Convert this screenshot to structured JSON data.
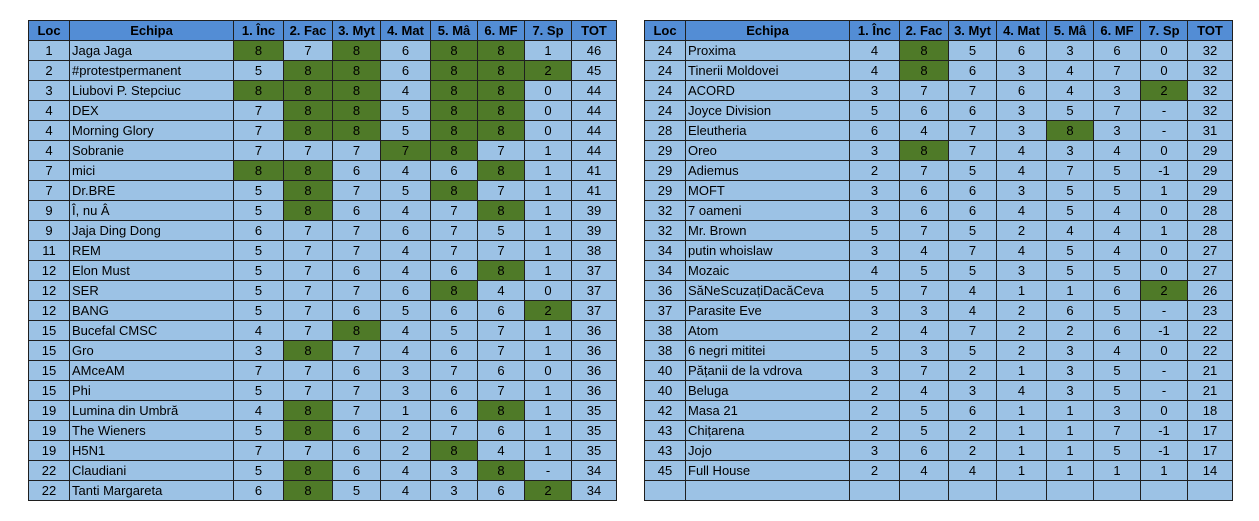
{
  "headers": [
    "Loc",
    "Echipa",
    "1. Înc",
    "2. Fac",
    "3. Myt",
    "4. Mat",
    "5. Mâ",
    "6. MF",
    "7. Sp",
    "TOT"
  ],
  "colors": {
    "header": "#538dd5",
    "cell": "#9cc2e5",
    "highlight": "#4f7a28"
  },
  "left_rows": [
    {
      "loc": "1",
      "team": "Jaga Jaga",
      "s": [
        "8",
        "7",
        "8",
        "6",
        "8",
        "8",
        "1"
      ],
      "hi": [
        0,
        2,
        4,
        5
      ],
      "tot": "46"
    },
    {
      "loc": "2",
      "team": "#protestpermanent",
      "s": [
        "5",
        "8",
        "8",
        "6",
        "8",
        "8",
        "2"
      ],
      "hi": [
        1,
        2,
        4,
        5,
        6
      ],
      "tot": "45"
    },
    {
      "loc": "3",
      "team": "Liubovi P. Stepciuc",
      "s": [
        "8",
        "8",
        "8",
        "4",
        "8",
        "8",
        "0"
      ],
      "hi": [
        0,
        1,
        2,
        4,
        5
      ],
      "tot": "44"
    },
    {
      "loc": "4",
      "team": "DEX",
      "s": [
        "7",
        "8",
        "8",
        "5",
        "8",
        "8",
        "0"
      ],
      "hi": [
        1,
        2,
        4,
        5
      ],
      "tot": "44"
    },
    {
      "loc": "4",
      "team": "Morning Glory",
      "s": [
        "7",
        "8",
        "8",
        "5",
        "8",
        "8",
        "0"
      ],
      "hi": [
        1,
        2,
        4,
        5
      ],
      "tot": "44"
    },
    {
      "loc": "4",
      "team": "Sobranie",
      "s": [
        "7",
        "7",
        "7",
        "7",
        "8",
        "7",
        "1"
      ],
      "hi": [
        3,
        4
      ],
      "tot": "44"
    },
    {
      "loc": "7",
      "team": "mici",
      "s": [
        "8",
        "8",
        "6",
        "4",
        "6",
        "8",
        "1"
      ],
      "hi": [
        0,
        1,
        5
      ],
      "tot": "41"
    },
    {
      "loc": "7",
      "team": "Dr.BRE",
      "s": [
        "5",
        "8",
        "7",
        "5",
        "8",
        "7",
        "1"
      ],
      "hi": [
        1,
        4
      ],
      "tot": "41"
    },
    {
      "loc": "9",
      "team": "Î, nu Â",
      "s": [
        "5",
        "8",
        "6",
        "4",
        "7",
        "8",
        "1"
      ],
      "hi": [
        1,
        5
      ],
      "tot": "39"
    },
    {
      "loc": "9",
      "team": "Jaja Ding Dong",
      "s": [
        "6",
        "7",
        "7",
        "6",
        "7",
        "5",
        "1"
      ],
      "hi": [],
      "tot": "39"
    },
    {
      "loc": "11",
      "team": "REM",
      "s": [
        "5",
        "7",
        "7",
        "4",
        "7",
        "7",
        "1"
      ],
      "hi": [],
      "tot": "38"
    },
    {
      "loc": "12",
      "team": "Elon Must",
      "s": [
        "5",
        "7",
        "6",
        "4",
        "6",
        "8",
        "1"
      ],
      "hi": [
        5
      ],
      "tot": "37"
    },
    {
      "loc": "12",
      "team": "SER",
      "s": [
        "5",
        "7",
        "7",
        "6",
        "8",
        "4",
        "0"
      ],
      "hi": [
        4
      ],
      "tot": "37"
    },
    {
      "loc": "12",
      "team": "BANG",
      "s": [
        "5",
        "7",
        "6",
        "5",
        "6",
        "6",
        "2"
      ],
      "hi": [
        6
      ],
      "tot": "37"
    },
    {
      "loc": "15",
      "team": "Bucefal CMSC",
      "s": [
        "4",
        "7",
        "8",
        "4",
        "5",
        "7",
        "1"
      ],
      "hi": [
        2
      ],
      "tot": "36"
    },
    {
      "loc": "15",
      "team": "Gro",
      "s": [
        "3",
        "8",
        "7",
        "4",
        "6",
        "7",
        "1"
      ],
      "hi": [
        1
      ],
      "tot": "36"
    },
    {
      "loc": "15",
      "team": "AMceAM",
      "s": [
        "7",
        "7",
        "6",
        "3",
        "7",
        "6",
        "0"
      ],
      "hi": [],
      "tot": "36"
    },
    {
      "loc": "15",
      "team": "Phi",
      "s": [
        "5",
        "7",
        "7",
        "3",
        "6",
        "7",
        "1"
      ],
      "hi": [],
      "tot": "36"
    },
    {
      "loc": "19",
      "team": "Lumina din Umbră",
      "s": [
        "4",
        "8",
        "7",
        "1",
        "6",
        "8",
        "1"
      ],
      "hi": [
        1,
        5
      ],
      "tot": "35"
    },
    {
      "loc": "19",
      "team": "The Wieners",
      "s": [
        "5",
        "8",
        "6",
        "2",
        "7",
        "6",
        "1"
      ],
      "hi": [
        1
      ],
      "tot": "35"
    },
    {
      "loc": "19",
      "team": "H5N1",
      "s": [
        "7",
        "7",
        "6",
        "2",
        "8",
        "4",
        "1"
      ],
      "hi": [
        4
      ],
      "tot": "35"
    },
    {
      "loc": "22",
      "team": "Claudiani",
      "s": [
        "5",
        "8",
        "6",
        "4",
        "3",
        "8",
        "-"
      ],
      "hi": [
        1,
        5
      ],
      "tot": "34"
    },
    {
      "loc": "22",
      "team": "Tanti Margareta",
      "s": [
        "6",
        "8",
        "5",
        "4",
        "3",
        "6",
        "2"
      ],
      "hi": [
        1,
        6
      ],
      "tot": "34"
    }
  ],
  "right_rows": [
    {
      "loc": "24",
      "team": "Proxima",
      "s": [
        "4",
        "8",
        "5",
        "6",
        "3",
        "6",
        "0"
      ],
      "hi": [
        1
      ],
      "tot": "32"
    },
    {
      "loc": "24",
      "team": "Tinerii Moldovei",
      "s": [
        "4",
        "8",
        "6",
        "3",
        "4",
        "7",
        "0"
      ],
      "hi": [
        1
      ],
      "tot": "32"
    },
    {
      "loc": "24",
      "team": "ACORD",
      "s": [
        "3",
        "7",
        "7",
        "6",
        "4",
        "3",
        "2"
      ],
      "hi": [
        6
      ],
      "tot": "32"
    },
    {
      "loc": "24",
      "team": "Joyce Division",
      "s": [
        "5",
        "6",
        "6",
        "3",
        "5",
        "7",
        "-"
      ],
      "hi": [],
      "tot": "32"
    },
    {
      "loc": "28",
      "team": "Eleutheria",
      "s": [
        "6",
        "4",
        "7",
        "3",
        "8",
        "3",
        "-"
      ],
      "hi": [
        4
      ],
      "tot": "31"
    },
    {
      "loc": "29",
      "team": "Oreo",
      "s": [
        "3",
        "8",
        "7",
        "4",
        "3",
        "4",
        "0"
      ],
      "hi": [
        1
      ],
      "tot": "29"
    },
    {
      "loc": "29",
      "team": "Adiemus",
      "s": [
        "2",
        "7",
        "5",
        "4",
        "7",
        "5",
        "-1"
      ],
      "hi": [],
      "tot": "29"
    },
    {
      "loc": "29",
      "team": "MOFT",
      "s": [
        "3",
        "6",
        "6",
        "3",
        "5",
        "5",
        "1"
      ],
      "hi": [],
      "tot": "29"
    },
    {
      "loc": "32",
      "team": "7 oameni",
      "s": [
        "3",
        "6",
        "6",
        "4",
        "5",
        "4",
        "0"
      ],
      "hi": [],
      "tot": "28"
    },
    {
      "loc": "32",
      "team": "Mr. Brown",
      "s": [
        "5",
        "7",
        "5",
        "2",
        "4",
        "4",
        "1"
      ],
      "hi": [],
      "tot": "28"
    },
    {
      "loc": "34",
      "team": "putin whoislaw",
      "s": [
        "3",
        "4",
        "7",
        "4",
        "5",
        "4",
        "0"
      ],
      "hi": [],
      "tot": "27"
    },
    {
      "loc": "34",
      "team": "Mozaic",
      "s": [
        "4",
        "5",
        "5",
        "3",
        "5",
        "5",
        "0"
      ],
      "hi": [],
      "tot": "27"
    },
    {
      "loc": "36",
      "team": "SăNeScuzațiDacăCeva",
      "s": [
        "5",
        "7",
        "4",
        "1",
        "1",
        "6",
        "2"
      ],
      "hi": [
        6
      ],
      "tot": "26"
    },
    {
      "loc": "37",
      "team": "Parasite Eve",
      "s": [
        "3",
        "3",
        "4",
        "2",
        "6",
        "5",
        "-"
      ],
      "hi": [],
      "tot": "23"
    },
    {
      "loc": "38",
      "team": "Atom",
      "s": [
        "2",
        "4",
        "7",
        "2",
        "2",
        "6",
        "-1"
      ],
      "hi": [],
      "tot": "22"
    },
    {
      "loc": "38",
      "team": "6 negri mititei",
      "s": [
        "5",
        "3",
        "5",
        "2",
        "3",
        "4",
        "0"
      ],
      "hi": [],
      "tot": "22"
    },
    {
      "loc": "40",
      "team": "Pățanii de la vdrova",
      "s": [
        "3",
        "7",
        "2",
        "1",
        "3",
        "5",
        "-"
      ],
      "hi": [],
      "tot": "21"
    },
    {
      "loc": "40",
      "team": "Beluga",
      "s": [
        "2",
        "4",
        "3",
        "4",
        "3",
        "5",
        "-"
      ],
      "hi": [],
      "tot": "21"
    },
    {
      "loc": "42",
      "team": "Masa 21",
      "s": [
        "2",
        "5",
        "6",
        "1",
        "1",
        "3",
        "0"
      ],
      "hi": [],
      "tot": "18"
    },
    {
      "loc": "43",
      "team": "Chițarena",
      "s": [
        "2",
        "5",
        "2",
        "1",
        "1",
        "7",
        "-1"
      ],
      "hi": [],
      "tot": "17"
    },
    {
      "loc": "43",
      "team": "Jojo",
      "s": [
        "3",
        "6",
        "2",
        "1",
        "1",
        "5",
        "-1"
      ],
      "hi": [],
      "tot": "17"
    },
    {
      "loc": "45",
      "team": "Full House",
      "s": [
        "2",
        "4",
        "4",
        "1",
        "1",
        "1",
        "1"
      ],
      "hi": [],
      "tot": "14"
    },
    {
      "loc": "",
      "team": "",
      "s": [
        "",
        "",
        "",
        "",
        "",
        "",
        ""
      ],
      "hi": [],
      "tot": ""
    }
  ]
}
